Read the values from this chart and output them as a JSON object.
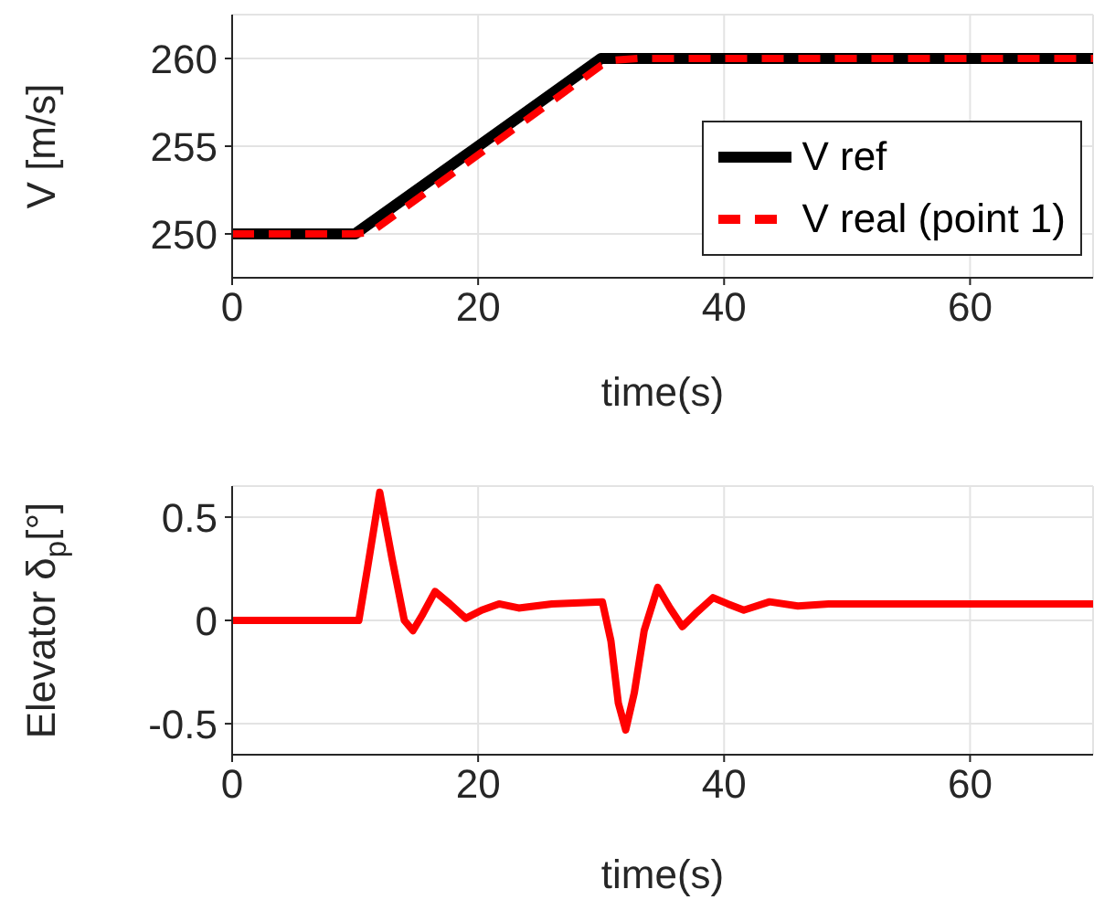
{
  "chart_data": [
    {
      "type": "line",
      "xlabel": "time(s)",
      "ylabel": "V [m/s]",
      "xlim": [
        0,
        70
      ],
      "xticks": [
        0,
        20,
        40,
        60
      ],
      "ylim": [
        247.5,
        262.5
      ],
      "yticks": [
        250,
        255,
        260
      ],
      "grid": true,
      "legend": "bottom right",
      "marker": "none",
      "series": [
        {
          "name": "V ref",
          "color": "#000000",
          "line_style": "solid",
          "x": [
            0,
            10,
            30,
            70
          ],
          "values": [
            250,
            250,
            260,
            260
          ]
        },
        {
          "name": "V real (point 1)",
          "color": "#ff0000",
          "line_style": "dashed",
          "x": [
            0,
            10,
            11.3,
            20,
            30,
            31,
            33,
            70
          ],
          "values": [
            250,
            250,
            250.1,
            254.5,
            259.6,
            259.9,
            260,
            260
          ]
        }
      ]
    },
    {
      "type": "line",
      "xlabel": "time(s)",
      "ylabel": "Elevator δ$_{p}$[°]",
      "xlim": [
        0,
        70
      ],
      "xticks": [
        0,
        20,
        40,
        60
      ],
      "ylim": [
        -0.65,
        0.65
      ],
      "yticks": [
        -0.5,
        0,
        0.5
      ],
      "grid": true,
      "legend": false,
      "marker": "none",
      "series": [
        {
          "color": "#ff0000",
          "line_style": "solid",
          "x": [
            0,
            10.3,
            11,
            12,
            13,
            14,
            14.7,
            15.5,
            16.5,
            17.7,
            19,
            20.3,
            21.7,
            23.3,
            26,
            30.1,
            30.8,
            31.4,
            32,
            32.7,
            33.5,
            34.6,
            35.6,
            36.6,
            37.8,
            39.1,
            40.3,
            41.6,
            43.7,
            46,
            48.5,
            55,
            70
          ],
          "values": [
            0,
            0,
            0.25,
            0.62,
            0.3,
            0,
            -0.05,
            0.03,
            0.14,
            0.08,
            0.01,
            0.05,
            0.08,
            0.06,
            0.08,
            0.09,
            -0.1,
            -0.4,
            -0.53,
            -0.35,
            -0.05,
            0.16,
            0.06,
            -0.03,
            0.04,
            0.11,
            0.08,
            0.05,
            0.09,
            0.07,
            0.08,
            0.08,
            0.08
          ]
        }
      ]
    }
  ]
}
